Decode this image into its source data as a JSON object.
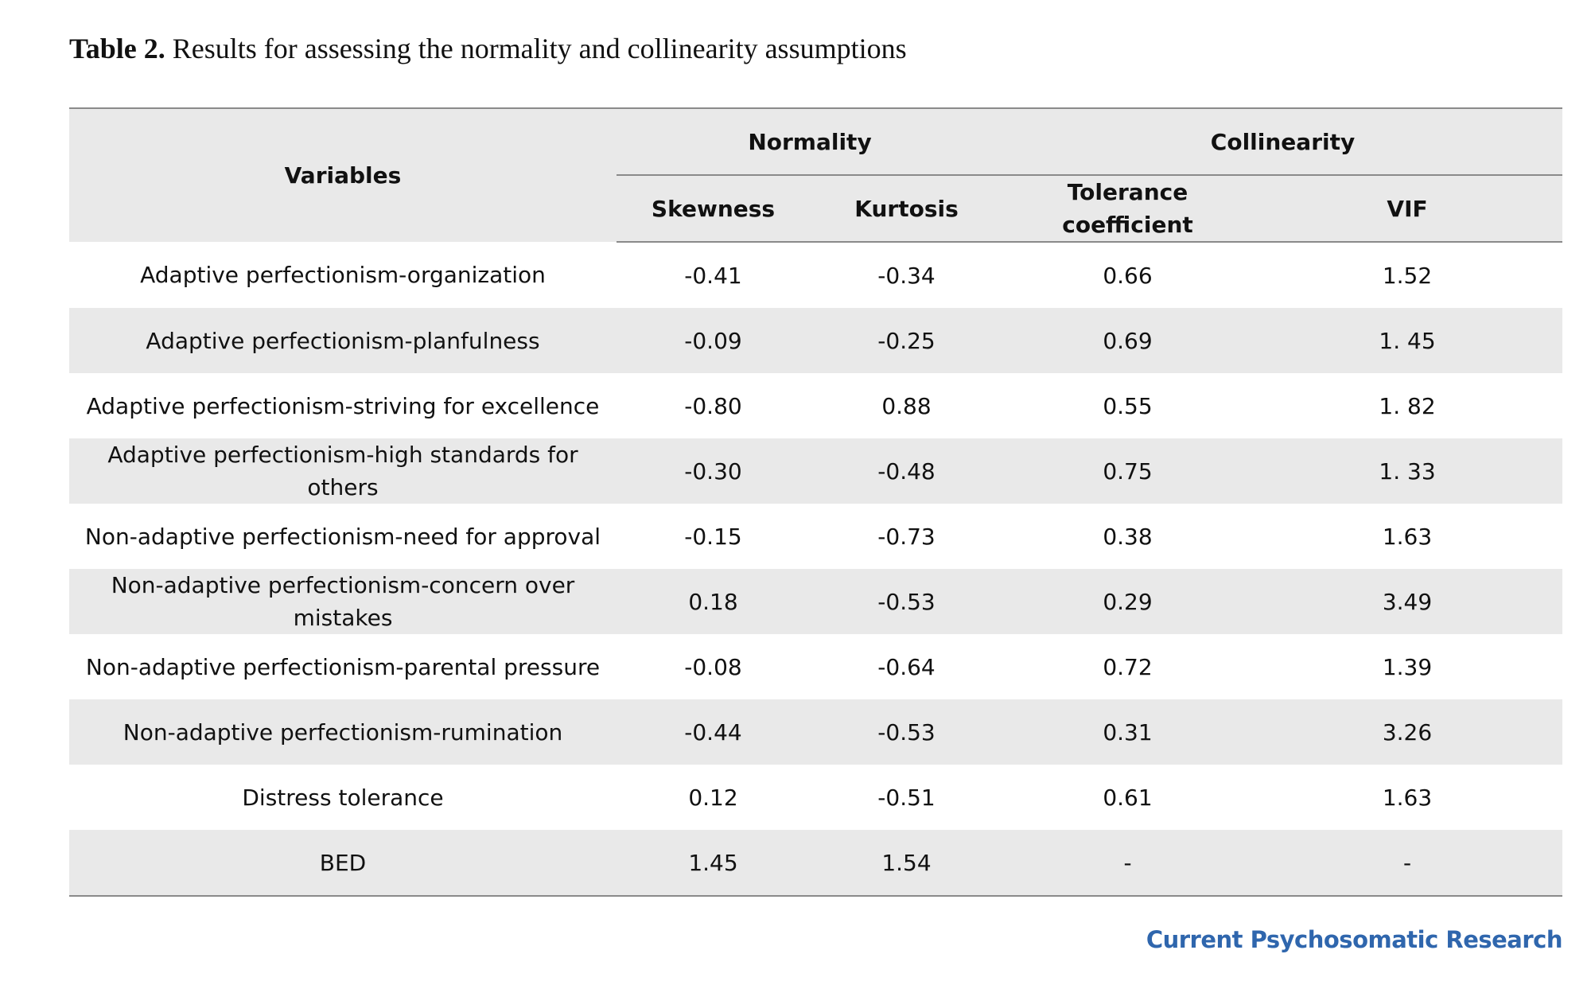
{
  "caption": {
    "label": "Table 2.",
    "text": " Results for assessing the normality and collinearity assumptions"
  },
  "table": {
    "headers": {
      "variables": "Variables",
      "normality": "Normality",
      "collinearity": "Collinearity",
      "skewness": "Skewness",
      "kurtosis": "Kurtosis",
      "tolerance": "Tolerance coefficient",
      "vif": "VIF"
    },
    "rows": [
      {
        "variable": "Adaptive perfectionism-organization",
        "skewness": "-0.41",
        "kurtosis": "-0.34",
        "tolerance": "0.66",
        "vif": "1.52"
      },
      {
        "variable": "Adaptive perfectionism-planfulness",
        "skewness": "-0.09",
        "kurtosis": "-0.25",
        "tolerance": "0.69",
        "vif": "1. 45"
      },
      {
        "variable": "Adaptive perfectionism-striving for excellence",
        "skewness": "-0.80",
        "kurtosis": "0.88",
        "tolerance": "0.55",
        "vif": "1. 82"
      },
      {
        "variable": "Adaptive perfectionism-high standards for others",
        "skewness": "-0.30",
        "kurtosis": "-0.48",
        "tolerance": "0.75",
        "vif": "1. 33"
      },
      {
        "variable": "Non-adaptive perfectionism-need for approval",
        "skewness": "-0.15",
        "kurtosis": "-0.73",
        "tolerance": "0.38",
        "vif": "1.63"
      },
      {
        "variable": "Non-adaptive perfectionism-concern over mistakes",
        "skewness": "0.18",
        "kurtosis": "-0.53",
        "tolerance": "0.29",
        "vif": "3.49"
      },
      {
        "variable": "Non-adaptive perfectionism-parental pressure",
        "skewness": "-0.08",
        "kurtosis": "-0.64",
        "tolerance": "0.72",
        "vif": "1.39"
      },
      {
        "variable": "Non-adaptive perfectionism-rumination",
        "skewness": "-0.44",
        "kurtosis": "-0.53",
        "tolerance": "0.31",
        "vif": "3.26"
      },
      {
        "variable": "Distress tolerance",
        "skewness": "0.12",
        "kurtosis": "-0.51",
        "tolerance": "0.61",
        "vif": "1.63"
      },
      {
        "variable": "BED",
        "skewness": "1.45",
        "kurtosis": "1.54",
        "tolerance": "-",
        "vif": "-"
      }
    ]
  },
  "footer": {
    "brand": "Current Psychosomatic Research"
  }
}
